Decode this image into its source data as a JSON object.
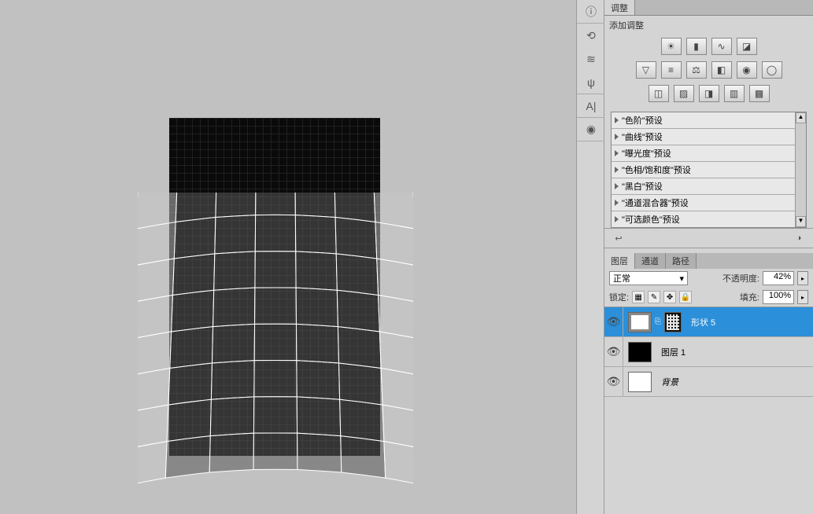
{
  "panels": {
    "adjustments": {
      "tab_label": "调整",
      "title": "添加调整",
      "icon_rows": [
        [
          "brightness",
          "levels",
          "curves",
          "exposure"
        ],
        [
          "vibrance",
          "hue",
          "balance",
          "bw",
          "photo",
          "lut"
        ],
        [
          "invert",
          "posterize",
          "threshold",
          "gradient",
          "selective"
        ]
      ],
      "icon_glyphs": {
        "brightness": "☀",
        "levels": "▮",
        "curves": "∿",
        "exposure": "◪",
        "vibrance": "▽",
        "hue": "≡",
        "balance": "⚖",
        "bw": "◧",
        "photo": "◉",
        "lut": "◯",
        "invert": "◫",
        "posterize": "▨",
        "threshold": "◨",
        "gradient": "▥",
        "selective": "▩"
      },
      "presets": [
        "\"色阶\"预设",
        "\"曲线\"预设",
        "\"曝光度\"预设",
        "\"色相/饱和度\"预设",
        "\"黑白\"预设",
        "\"通道混合器\"预设",
        "\"可选颜色\"预设"
      ]
    },
    "layers": {
      "tabs": [
        "图层",
        "通道",
        "路径"
      ],
      "active_tab": 0,
      "blend_mode": "正常",
      "opacity_label": "不透明度:",
      "opacity_value": "42%",
      "lock_label": "锁定:",
      "fill_label": "填充:",
      "fill_value": "100%",
      "items": [
        {
          "name": "形状 5",
          "visible": true,
          "selected": true,
          "thumb": "shape",
          "has_mask": true
        },
        {
          "name": "图层 1",
          "visible": true,
          "selected": false,
          "thumb": "dark",
          "has_mask": false
        },
        {
          "name": "背景",
          "visible": true,
          "selected": false,
          "thumb": "white",
          "has_mask": false,
          "italic": true
        }
      ]
    }
  },
  "vtools": [
    "ⓘ",
    "⟲",
    "≋",
    "ψ",
    "—",
    "A|",
    "—",
    "◉"
  ],
  "colors": {
    "bg": "#c1c1c1",
    "panel": "#d4d4d4",
    "selected": "#2b8fd9"
  },
  "canvas": {
    "grid_cols": 7,
    "grid_rows": 8
  }
}
